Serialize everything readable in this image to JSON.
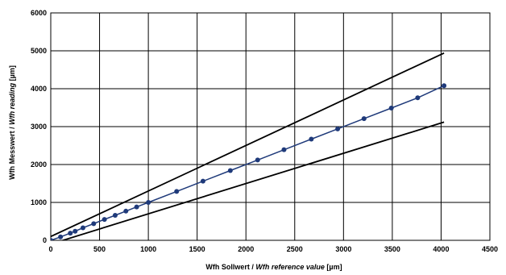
{
  "chart_data": {
    "type": "line",
    "title": "",
    "xlabel_prefix": "Wfh Sollwert / ",
    "xlabel_italic": "Wfh reference value",
    "xlabel_suffix": " [µm]",
    "ylabel_prefix": "Wfh Messwert / ",
    "ylabel_italic": "Wfh reading",
    "ylabel_suffix": "  [µm]",
    "xlim": [
      0,
      4500
    ],
    "ylim": [
      0,
      6000
    ],
    "x_ticks": [
      0,
      500,
      1000,
      1500,
      2000,
      2500,
      3000,
      3500,
      4000,
      4500
    ],
    "y_ticks": [
      0,
      1000,
      2000,
      3000,
      4000,
      5000,
      6000
    ],
    "grid": true,
    "legend": "none",
    "series": [
      {
        "role": "measurement",
        "color": "#1f3a7a",
        "marker": "circle",
        "x": [
          0,
          100,
          200,
          250,
          330,
          440,
          550,
          660,
          770,
          880,
          1000,
          1290,
          1560,
          1840,
          2120,
          2390,
          2670,
          2940,
          3210,
          3490,
          3760,
          4030
        ],
        "y": [
          0,
          90,
          190,
          240,
          330,
          440,
          550,
          660,
          770,
          880,
          1000,
          1290,
          1560,
          1840,
          2120,
          2390,
          2670,
          2940,
          3210,
          3490,
          3760,
          4080
        ]
      },
      {
        "role": "upper-tolerance",
        "color": "#000000",
        "marker": "none",
        "x": [
          0,
          4030
        ],
        "y": [
          100,
          4940
        ]
      },
      {
        "role": "lower-tolerance",
        "color": "#000000",
        "marker": "none",
        "x": [
          0,
          4030
        ],
        "y": [
          -100,
          3120
        ]
      }
    ]
  }
}
